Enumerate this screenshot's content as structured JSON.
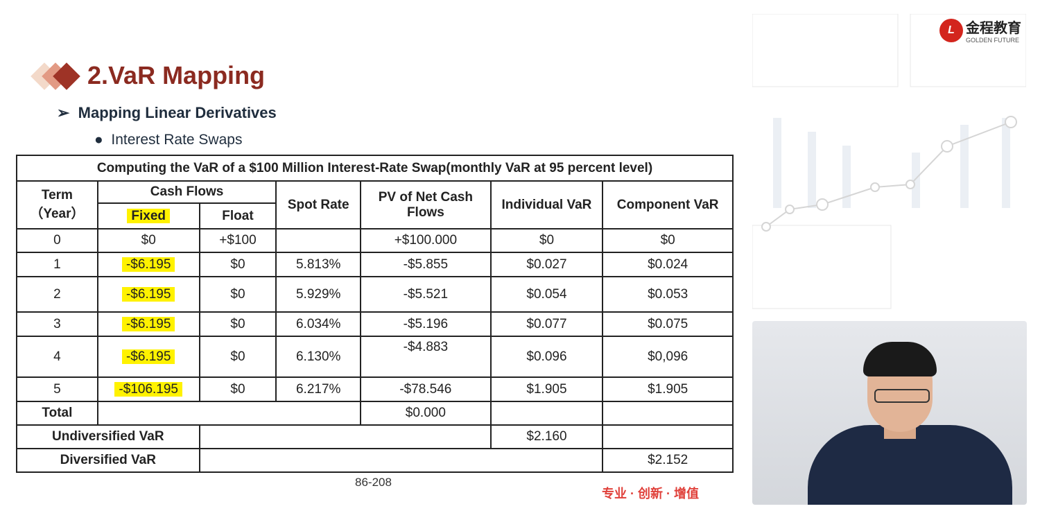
{
  "header": {
    "title": "2.VaR Mapping",
    "subtitle": "Mapping Linear Derivatives",
    "bullet": "Interest Rate Swaps"
  },
  "logo": {
    "name_cn": "金程教育",
    "name_en": "GOLDEN FUTURE"
  },
  "table": {
    "caption": "Computing the VaR of a $100 Million Interest-Rate Swap(monthly VaR at 95 percent level)",
    "headers": {
      "term": "Term",
      "year": "（Year）",
      "cash_flows": "Cash Flows",
      "fixed": "Fixed",
      "float": "Float",
      "spot": "Spot Rate",
      "pv": "PV of Net Cash Flows",
      "ivar": "Individual VaR",
      "cvar": "Component VaR"
    },
    "rows": [
      {
        "term": "0",
        "fixed": "$0",
        "float": "+$100",
        "spot": "",
        "pv": "+$100.000",
        "ivar": "$0",
        "cvar": "$0"
      },
      {
        "term": "1",
        "fixed": "-$6.195",
        "float": "$0",
        "spot": "5.813%",
        "pv": "-$5.855",
        "ivar": "$0.027",
        "cvar": "$0.024"
      },
      {
        "term": "2",
        "fixed": "-$6.195",
        "float": "$0",
        "spot": "5.929%",
        "pv": "-$5.521",
        "ivar": "$0.054",
        "cvar": "$0.053"
      },
      {
        "term": "3",
        "fixed": "-$6.195",
        "float": "$0",
        "spot": "6.034%",
        "pv": "-$5.196",
        "ivar": "$0.077",
        "cvar": "$0.075"
      },
      {
        "term": "4",
        "fixed": "-$6.195",
        "float": "$0",
        "spot": "6.130%",
        "pv": "-$4.883",
        "ivar": "$0.096",
        "cvar": "$0,096"
      },
      {
        "term": "5",
        "fixed": "-$106.195",
        "float": "$0",
        "spot": "6.217%",
        "pv": "-$78.546",
        "ivar": "$1.905",
        "cvar": "$1.905"
      }
    ],
    "total_label": "Total",
    "total_pv": "$0.000",
    "undiv_label": "Undiversified VaR",
    "undiv_value": "$2.160",
    "div_label": "Diversified VaR",
    "div_value": "$2.152"
  },
  "footer": {
    "page": "86-208",
    "slogan": "专业 · 创新 · 增值"
  }
}
